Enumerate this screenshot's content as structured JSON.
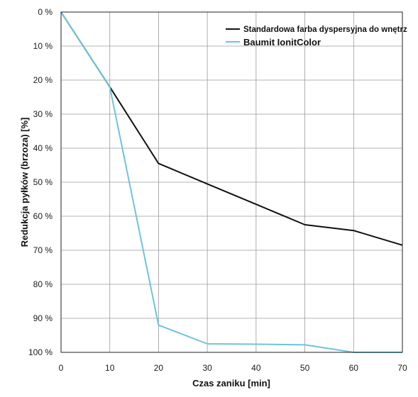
{
  "chart_data": {
    "type": "line",
    "xlabel": "Czas zaniku [min]",
    "ylabel": "Redukcja pyłków (brzoza) [%]",
    "xlim": [
      0,
      70
    ],
    "ylim": [
      0,
      100
    ],
    "y_inverted": true,
    "grid": true,
    "legend_position": "top-right",
    "x_ticks": [
      0,
      10,
      20,
      30,
      40,
      50,
      60,
      70
    ],
    "x_tick_labels": [
      "0",
      "10",
      "20",
      "30",
      "40",
      "50",
      "60",
      "70"
    ],
    "y_ticks": [
      0,
      10,
      20,
      30,
      40,
      50,
      60,
      70,
      80,
      90,
      100
    ],
    "y_tick_labels": [
      "0 %",
      "10 %",
      "20 %",
      "30 %",
      "40 %",
      "50 %",
      "60 %",
      "70 %",
      "80 %",
      "90 %",
      "100 %"
    ],
    "series": [
      {
        "name": "Standardowa farba dyspersyjna do wnętrz",
        "color": "#111111",
        "x": [
          0,
          10,
          20,
          30,
          40,
          50,
          60,
          70
        ],
        "y": [
          0,
          22,
          44.5,
          50.5,
          56.5,
          62.5,
          64.2,
          68.5
        ]
      },
      {
        "name": "Baumit IonitColor",
        "color": "#6ec3df",
        "x": [
          0,
          10,
          20,
          30,
          40,
          50,
          60,
          70
        ],
        "y": [
          0,
          22,
          92,
          97.5,
          97.6,
          97.8,
          100,
          100
        ]
      }
    ]
  }
}
